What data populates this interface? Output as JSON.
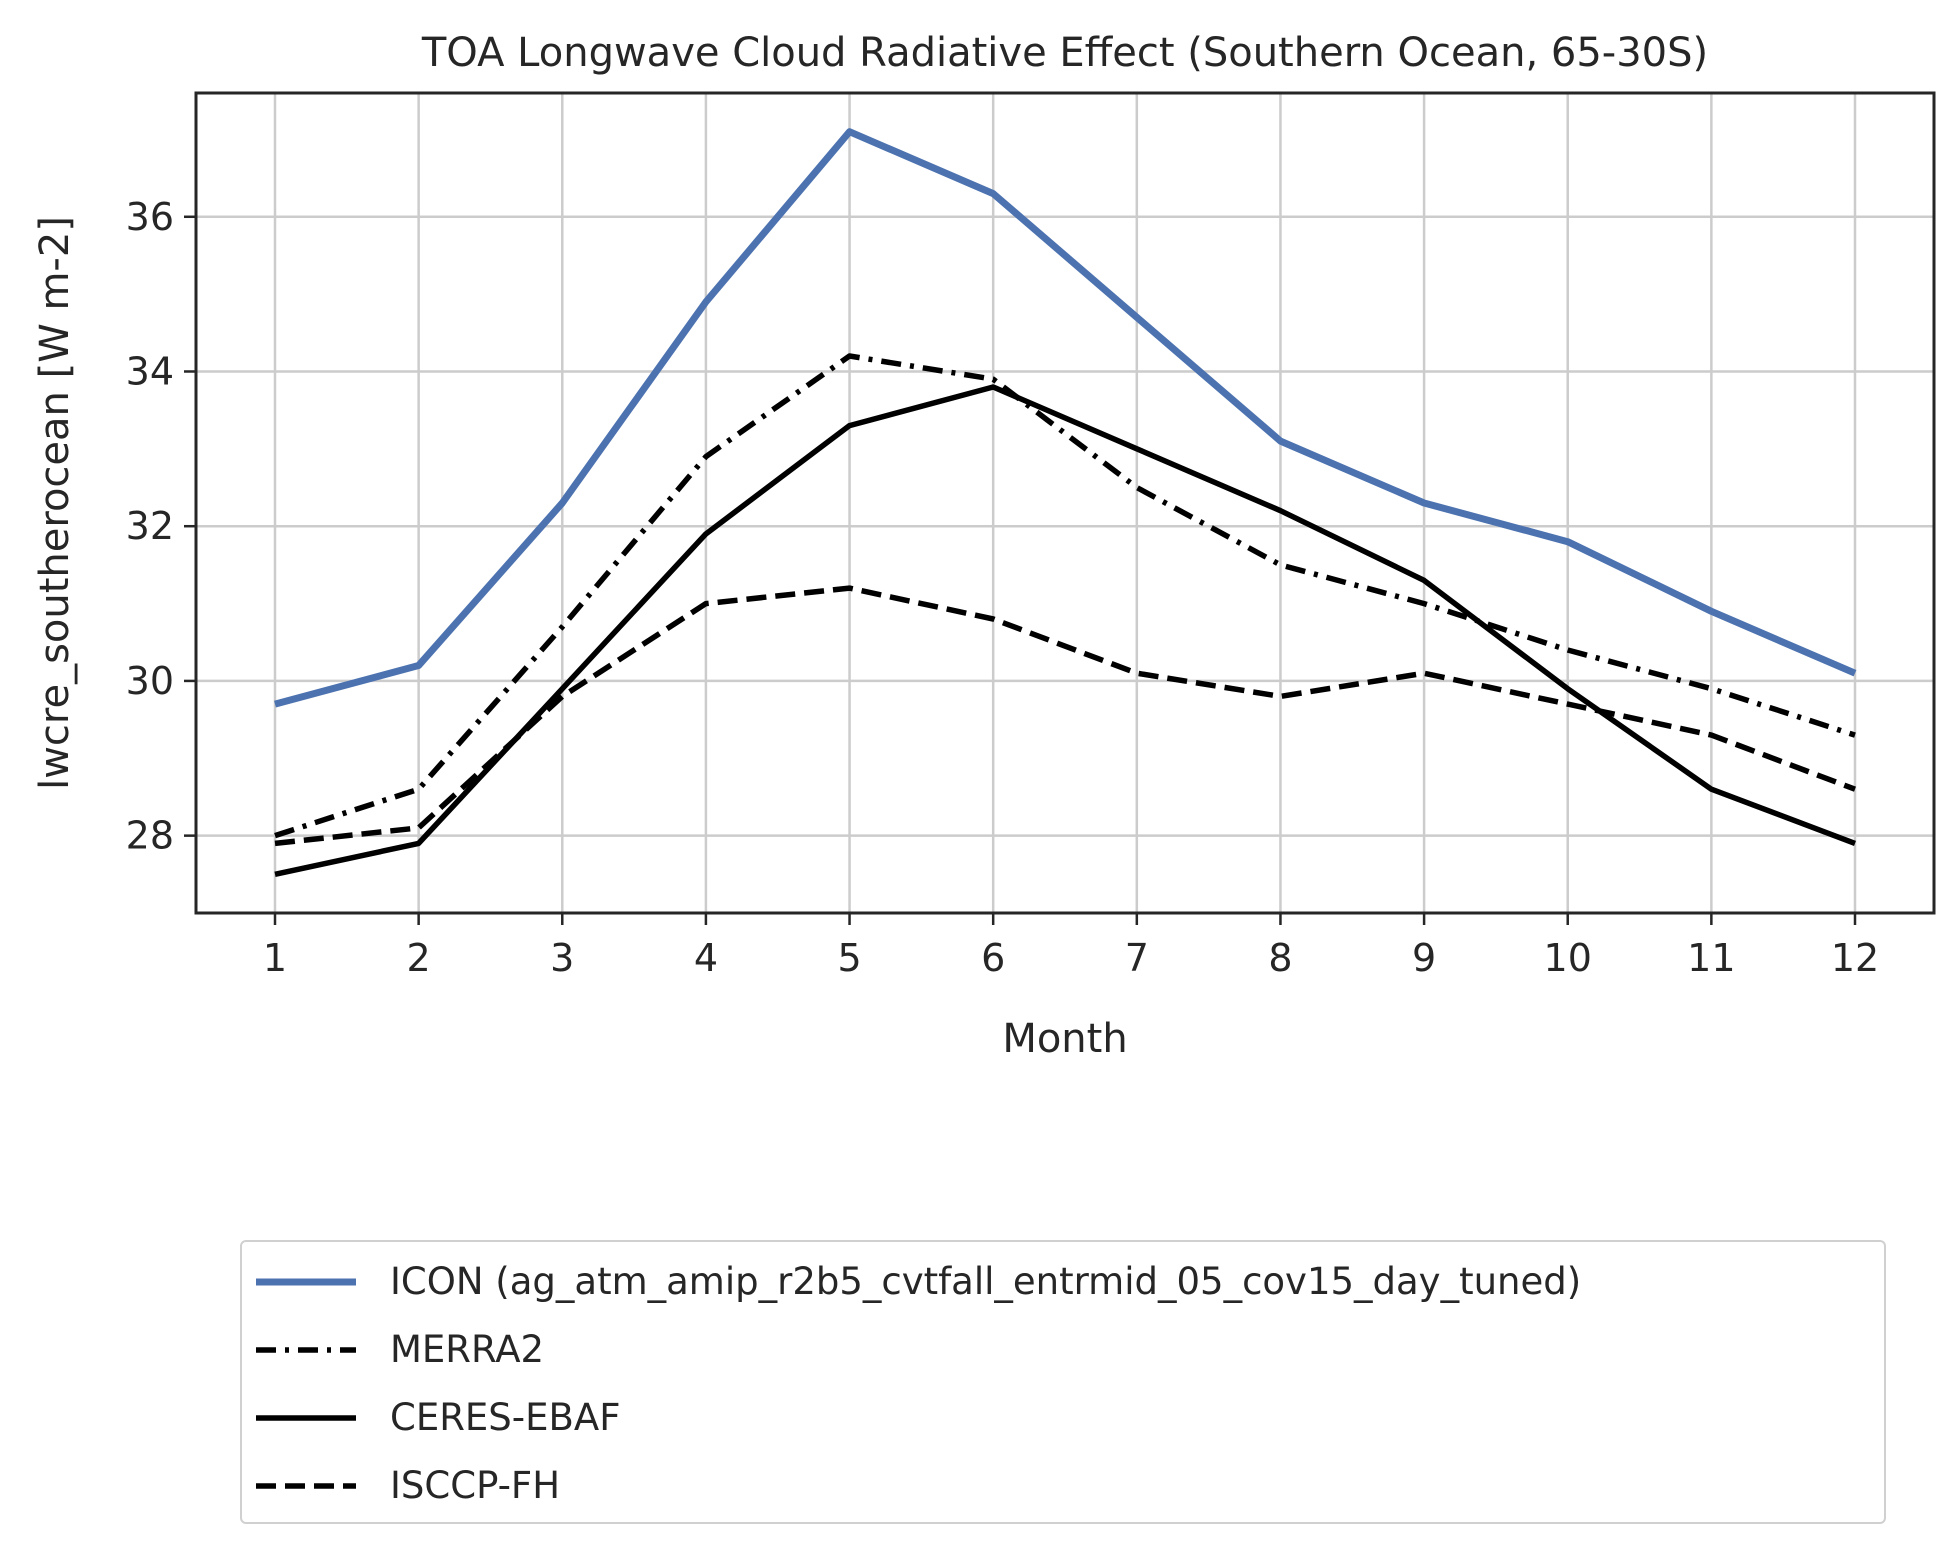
{
  "chart_data": {
    "type": "line",
    "title": "TOA Longwave Cloud Radiative Effect (Southern Ocean, 65-30S)",
    "xlabel": "Month",
    "ylabel": "lwcre_southerocean [W m-2]",
    "x": [
      1,
      2,
      3,
      4,
      5,
      6,
      7,
      8,
      9,
      10,
      11,
      12
    ],
    "xticks": [
      "1",
      "2",
      "3",
      "4",
      "5",
      "6",
      "7",
      "8",
      "9",
      "10",
      "11",
      "12"
    ],
    "xlim": [
      0.45,
      12.55
    ],
    "ylim": [
      27.0,
      37.6
    ],
    "yticks": [
      28,
      30,
      32,
      34,
      36
    ],
    "ytick_labels": [
      "28",
      "30",
      "32",
      "34",
      "36"
    ],
    "grid": true,
    "legend_position": "below",
    "series": [
      {
        "name": "ICON (ag_atm_amip_r2b5_cvtfall_entrmid_05_cov15_day_tuned)",
        "values": [
          29.7,
          30.2,
          32.3,
          34.9,
          37.1,
          36.3,
          34.7,
          33.1,
          32.3,
          31.8,
          30.9,
          30.1
        ],
        "color": "#4c72b0",
        "dash": "solid"
      },
      {
        "name": "MERRA2",
        "values": [
          28.0,
          28.6,
          30.7,
          32.9,
          34.2,
          33.9,
          32.5,
          31.5,
          31.0,
          30.4,
          29.9,
          29.3
        ],
        "color": "#000000",
        "dash": "dashdot"
      },
      {
        "name": "CERES-EBAF",
        "values": [
          27.5,
          27.9,
          29.9,
          31.9,
          33.3,
          33.8,
          33.0,
          32.2,
          31.3,
          29.9,
          28.6,
          27.9
        ],
        "color": "#000000",
        "dash": "solid"
      },
      {
        "name": "ISCCP-FH",
        "values": [
          27.9,
          28.1,
          29.8,
          31.0,
          31.2,
          30.8,
          30.1,
          29.8,
          30.1,
          29.7,
          29.3,
          28.6
        ],
        "color": "#000000",
        "dash": "dashed"
      }
    ]
  }
}
